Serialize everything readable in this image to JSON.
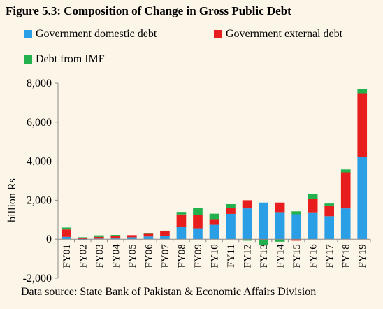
{
  "chart_data": {
    "type": "bar",
    "stacked": true,
    "title": "Figure 5.3: Composition of Change in Gross Public Debt",
    "ylabel": "billion Rs",
    "xlabel": "",
    "ylim": [
      -2000,
      8000
    ],
    "yticks": [
      -2000,
      0,
      2000,
      4000,
      6000,
      8000
    ],
    "ytick_labels": [
      "-2,000",
      "0",
      "2,000",
      "4,000",
      "6,000",
      "8,000"
    ],
    "grid": false,
    "legend_position": "top-left",
    "categories": [
      "FY01",
      "FY02",
      "FY03",
      "FY04",
      "FY05",
      "FY06",
      "FY07",
      "FY08",
      "FY09",
      "FY10",
      "FY11",
      "FY12",
      "FY13",
      "FY14",
      "FY15",
      "FY16",
      "FY17",
      "FY18",
      "FY19"
    ],
    "series": [
      {
        "name": "Government domestic debt",
        "color": "#2b9fe6",
        "values": [
          120,
          -60,
          30,
          40,
          100,
          140,
          180,
          620,
          560,
          740,
          1300,
          1580,
          1880,
          1390,
          1280,
          1380,
          1180,
          1580,
          4230
        ]
      },
      {
        "name": "Government external debt",
        "color": "#e81e1e",
        "values": [
          380,
          60,
          90,
          110,
          110,
          140,
          230,
          650,
          670,
          290,
          320,
          420,
          -20,
          490,
          -80,
          690,
          550,
          1850,
          3250
        ]
      },
      {
        "name": "Debt from IMF",
        "color": "#22b14c",
        "values": [
          100,
          40,
          80,
          70,
          0,
          30,
          30,
          130,
          370,
          280,
          180,
          -80,
          -270,
          -130,
          150,
          240,
          100,
          150,
          230
        ]
      }
    ],
    "source": "Data source: State Bank of Pakistan & Economic Affairs Division"
  }
}
